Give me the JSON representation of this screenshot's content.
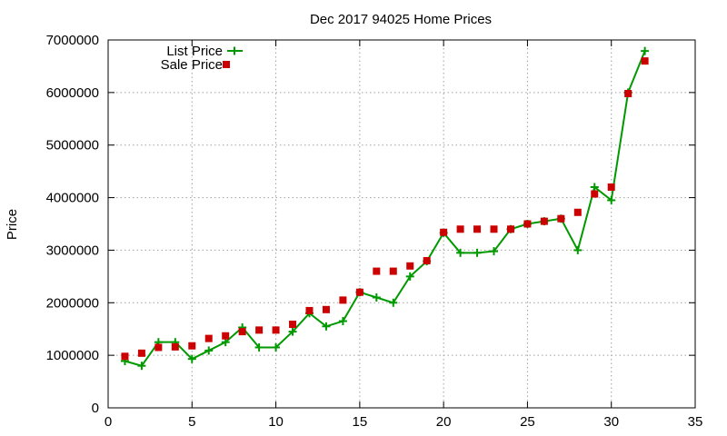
{
  "chart_data": {
    "type": "line",
    "title": "Dec 2017 94025 Home Prices",
    "xlabel": "",
    "ylabel": "Price",
    "xlim": [
      0,
      35
    ],
    "ylim": [
      0,
      7000000
    ],
    "xticks": [
      0,
      5,
      10,
      15,
      20,
      25,
      30,
      35
    ],
    "yticks": [
      0,
      1000000,
      2000000,
      3000000,
      4000000,
      5000000,
      6000000,
      7000000
    ],
    "xtick_labels": [
      "0",
      "5",
      "10",
      "15",
      "20",
      "25",
      "30",
      "35"
    ],
    "ytick_labels": [
      "0",
      "1000000",
      "2000000",
      "3000000",
      "4000000",
      "5000000",
      "6000000",
      "7000000"
    ],
    "grid": true,
    "legend_position": "top-left",
    "x": [
      1,
      2,
      3,
      4,
      5,
      6,
      7,
      8,
      9,
      10,
      11,
      12,
      13,
      14,
      15,
      16,
      17,
      18,
      19,
      20,
      21,
      22,
      23,
      24,
      25,
      26,
      27,
      28,
      29,
      30,
      31,
      32
    ],
    "series": [
      {
        "name": "List Price",
        "style": "lines-points",
        "marker": "plus",
        "color": "#009900",
        "values": [
          890000,
          800000,
          1250000,
          1250000,
          930000,
          1090000,
          1250000,
          1530000,
          1150000,
          1150000,
          1450000,
          1800000,
          1550000,
          1650000,
          2200000,
          2100000,
          2000000,
          2500000,
          2790000,
          3330000,
          2950000,
          2950000,
          2980000,
          3400000,
          3500000,
          3550000,
          3600000,
          3000000,
          4200000,
          3950000,
          6000000,
          6790000
        ]
      },
      {
        "name": "Sale Price",
        "style": "points",
        "marker": "square",
        "color": "#cc0000",
        "values": [
          980000,
          1040000,
          1150000,
          1160000,
          1180000,
          1320000,
          1370000,
          1450000,
          1480000,
          1480000,
          1590000,
          1850000,
          1870000,
          2050000,
          2200000,
          2600000,
          2600000,
          2700000,
          2800000,
          3340000,
          3400000,
          3400000,
          3400000,
          3400000,
          3500000,
          3550000,
          3600000,
          3720000,
          4070000,
          4200000,
          5980000,
          6600000
        ]
      }
    ]
  }
}
